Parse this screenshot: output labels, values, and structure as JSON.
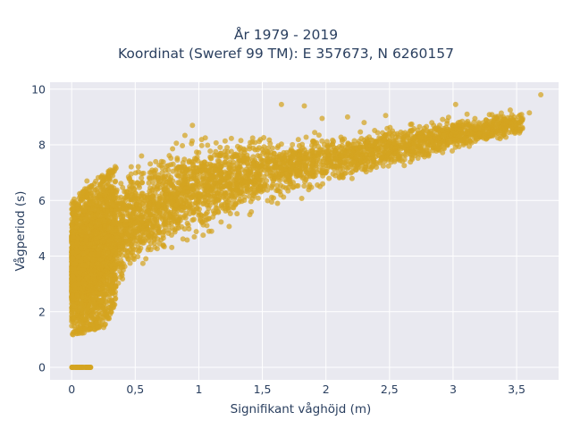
{
  "chart_data": {
    "type": "scatter",
    "title_lines": [
      "År 1979 - 2019",
      "Koordinat (Sweref 99 TM): E 357673, N 6260157"
    ],
    "xlabel": "Signifikant våghöjd (m)",
    "ylabel": "Vågperiod (s)",
    "xlim": [
      -0.17,
      3.83
    ],
    "ylim": [
      -0.45,
      10.25
    ],
    "x_ticks": [
      0,
      0.5,
      1,
      1.5,
      2,
      2.5,
      3,
      3.5
    ],
    "x_tick_labels": [
      "0",
      "0,5",
      "1",
      "1,5",
      "2",
      "2,5",
      "3",
      "3,5"
    ],
    "y_ticks": [
      0,
      2,
      4,
      6,
      8,
      10
    ],
    "y_tick_labels": [
      "0",
      "2",
      "4",
      "6",
      "8",
      "10"
    ],
    "grid": true,
    "marker_color": "#d4a420",
    "plot_background": "#e9e9f0",
    "distribution": {
      "lower_envelope": [
        [
          0.0,
          1.1
        ],
        [
          0.25,
          1.4
        ],
        [
          0.35,
          2.2
        ],
        [
          0.5,
          3.0
        ],
        [
          0.75,
          3.8
        ],
        [
          1.0,
          4.4
        ],
        [
          1.5,
          5.5
        ],
        [
          2.0,
          6.3
        ],
        [
          2.5,
          7.0
        ],
        [
          3.0,
          7.6
        ],
        [
          3.5,
          8.2
        ]
      ],
      "upper_envelope": [
        [
          0.0,
          6.0
        ],
        [
          0.25,
          7.0
        ],
        [
          0.5,
          7.6
        ],
        [
          0.75,
          8.3
        ],
        [
          1.0,
          8.5
        ],
        [
          1.5,
          8.6
        ],
        [
          2.0,
          8.6
        ],
        [
          2.5,
          8.8
        ],
        [
          3.0,
          9.1
        ],
        [
          3.5,
          9.3
        ]
      ],
      "zero_period_cluster": {
        "x_range": [
          0.0,
          0.15
        ],
        "y": 0
      }
    },
    "outliers": [
      {
        "x": 1.65,
        "y": 9.45
      },
      {
        "x": 1.83,
        "y": 9.4
      },
      {
        "x": 3.69,
        "y": 9.8
      },
      {
        "x": 3.6,
        "y": 9.15
      },
      {
        "x": 3.45,
        "y": 9.25
      },
      {
        "x": 3.02,
        "y": 9.45
      },
      {
        "x": 3.11,
        "y": 9.1
      },
      {
        "x": 2.47,
        "y": 9.05
      },
      {
        "x": 2.17,
        "y": 9.0
      },
      {
        "x": 1.97,
        "y": 8.95
      },
      {
        "x": 2.3,
        "y": 8.8
      },
      {
        "x": 3.3,
        "y": 8.85
      },
      {
        "x": 3.52,
        "y": 8.8
      },
      {
        "x": 3.4,
        "y": 8.75
      },
      {
        "x": 0.55,
        "y": 7.6
      },
      {
        "x": 0.02,
        "y": 6.05
      },
      {
        "x": 0.12,
        "y": 6.7
      },
      {
        "x": 0.95,
        "y": 8.7
      }
    ]
  }
}
